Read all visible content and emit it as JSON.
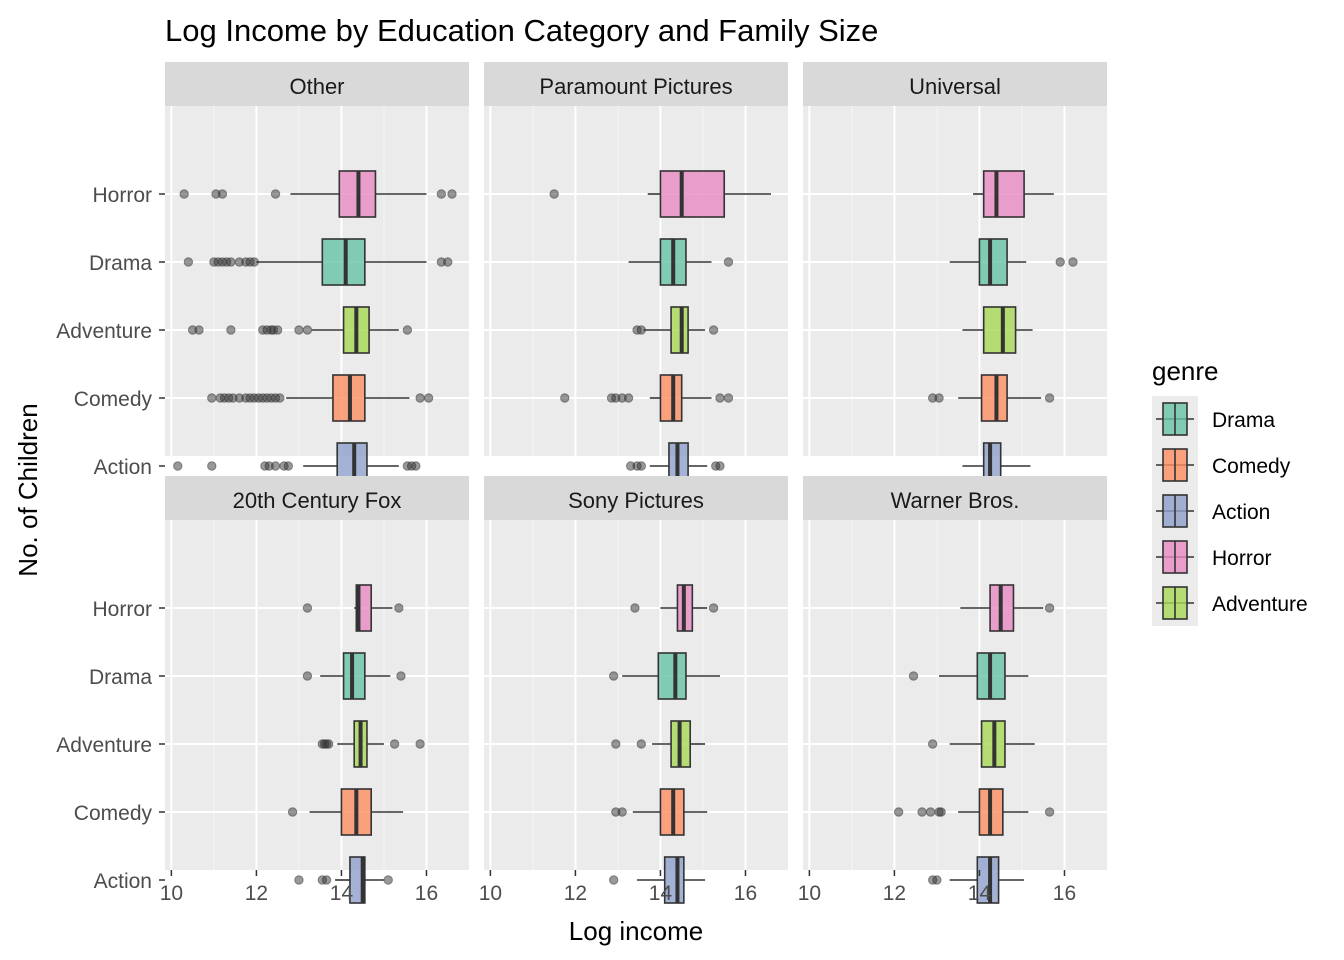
{
  "chart_data": {
    "type": "boxplot",
    "title": "Log Income by Education Category and Family Size",
    "xlabel": "Log income",
    "ylabel": "No. of Children",
    "xlim": [
      9.85,
      17.0
    ],
    "x_ticks": [
      10,
      12,
      14,
      16
    ],
    "categories": [
      "Horror",
      "Drama",
      "Adventure",
      "Comedy",
      "Action"
    ],
    "legend": {
      "title": "genre",
      "position": "right",
      "entries": [
        "Drama",
        "Comedy",
        "Action",
        "Horror",
        "Adventure"
      ]
    },
    "colors": {
      "Drama": "#66c2a5",
      "Comedy": "#fc8d62",
      "Action": "#8da0cb",
      "Horror": "#e78ac3",
      "Adventure": "#a6d854"
    },
    "box_opacity": 0.8,
    "grid": true,
    "facets": [
      {
        "label": "Other",
        "boxes": [
          {
            "genre": "Horror",
            "whisker_low": 12.8,
            "q1": 13.95,
            "median": 14.4,
            "q3": 14.8,
            "whisker_high": 16.0,
            "outliers": [
              10.3,
              11.05,
              11.2,
              12.45,
              16.35,
              16.6
            ]
          },
          {
            "genre": "Drama",
            "whisker_low": 12.0,
            "q1": 13.55,
            "median": 14.1,
            "q3": 14.55,
            "whisker_high": 16.0,
            "outliers": [
              10.4,
              11.0,
              11.1,
              11.2,
              11.3,
              11.4,
              11.6,
              11.75,
              11.85,
              11.95,
              16.35,
              16.5
            ]
          },
          {
            "genre": "Adventure",
            "whisker_low": 13.3,
            "q1": 14.05,
            "median": 14.35,
            "q3": 14.65,
            "whisker_high": 15.35,
            "outliers": [
              10.5,
              10.65,
              11.4,
              12.15,
              12.25,
              12.35,
              12.4,
              12.5,
              13.0,
              13.2,
              15.55
            ]
          },
          {
            "genre": "Comedy",
            "whisker_low": 12.7,
            "q1": 13.8,
            "median": 14.2,
            "q3": 14.55,
            "whisker_high": 15.6,
            "outliers": [
              10.95,
              11.15,
              11.25,
              11.35,
              11.45,
              11.6,
              11.75,
              11.85,
              11.95,
              12.05,
              12.15,
              12.25,
              12.35,
              12.45,
              12.55,
              15.85,
              16.05
            ]
          },
          {
            "genre": "Action",
            "whisker_low": 13.1,
            "q1": 13.9,
            "median": 14.3,
            "q3": 14.6,
            "whisker_high": 15.35,
            "outliers": [
              10.15,
              10.95,
              12.2,
              12.3,
              12.45,
              12.65,
              12.75,
              15.55,
              15.65,
              15.75
            ]
          }
        ]
      },
      {
        "label": "Paramount Pictures",
        "boxes": [
          {
            "genre": "Horror",
            "whisker_low": 13.7,
            "q1": 14.0,
            "median": 14.5,
            "q3": 15.5,
            "whisker_high": 16.6,
            "outliers": [
              11.5
            ]
          },
          {
            "genre": "Drama",
            "whisker_low": 13.25,
            "q1": 14.0,
            "median": 14.3,
            "q3": 14.6,
            "whisker_high": 15.2,
            "outliers": [
              15.6
            ]
          },
          {
            "genre": "Adventure",
            "whisker_low": 13.6,
            "q1": 14.25,
            "median": 14.5,
            "q3": 14.65,
            "whisker_high": 15.05,
            "outliers": [
              13.45,
              13.55,
              15.25
            ]
          },
          {
            "genre": "Comedy",
            "whisker_low": 13.75,
            "q1": 14.0,
            "median": 14.3,
            "q3": 14.5,
            "whisker_high": 15.2,
            "outliers": [
              11.75,
              12.85,
              12.95,
              13.1,
              13.25,
              15.4,
              15.6
            ]
          },
          {
            "genre": "Action",
            "whisker_low": 13.75,
            "q1": 14.2,
            "median": 14.4,
            "q3": 14.65,
            "whisker_high": 15.1,
            "outliers": [
              13.3,
              13.45,
              13.55,
              15.3,
              15.4
            ]
          }
        ]
      },
      {
        "label": "Universal",
        "boxes": [
          {
            "genre": "Horror",
            "whisker_low": 13.85,
            "q1": 14.1,
            "median": 14.4,
            "q3": 15.05,
            "whisker_high": 15.75,
            "outliers": []
          },
          {
            "genre": "Drama",
            "whisker_low": 13.3,
            "q1": 14.0,
            "median": 14.25,
            "q3": 14.65,
            "whisker_high": 15.1,
            "outliers": [
              15.9,
              16.2
            ]
          },
          {
            "genre": "Adventure",
            "whisker_low": 13.6,
            "q1": 14.1,
            "median": 14.55,
            "q3": 14.85,
            "whisker_high": 15.25,
            "outliers": []
          },
          {
            "genre": "Comedy",
            "whisker_low": 13.5,
            "q1": 14.05,
            "median": 14.4,
            "q3": 14.65,
            "whisker_high": 15.45,
            "outliers": [
              12.9,
              13.05,
              15.65
            ]
          },
          {
            "genre": "Action",
            "whisker_low": 13.6,
            "q1": 14.1,
            "median": 14.25,
            "q3": 14.5,
            "whisker_high": 15.2,
            "outliers": []
          }
        ]
      },
      {
        "label": "20th Century Fox",
        "boxes": [
          {
            "genre": "Horror",
            "whisker_low": 14.3,
            "q1": 14.35,
            "median": 14.4,
            "q3": 14.7,
            "whisker_high": 15.2,
            "outliers": [
              13.2,
              15.35
            ]
          },
          {
            "genre": "Drama",
            "whisker_low": 13.5,
            "q1": 14.05,
            "median": 14.25,
            "q3": 14.55,
            "whisker_high": 15.15,
            "outliers": [
              13.2,
              15.4
            ]
          },
          {
            "genre": "Adventure",
            "whisker_low": 13.9,
            "q1": 14.3,
            "median": 14.45,
            "q3": 14.6,
            "whisker_high": 15.0,
            "outliers": [
              13.55,
              13.6,
              13.65,
              13.7,
              15.25,
              15.85
            ]
          },
          {
            "genre": "Comedy",
            "whisker_low": 13.25,
            "q1": 14.0,
            "median": 14.35,
            "q3": 14.7,
            "whisker_high": 15.45,
            "outliers": [
              12.85
            ]
          },
          {
            "genre": "Action",
            "whisker_low": 13.85,
            "q1": 14.2,
            "median": 14.5,
            "q3": 14.55,
            "whisker_high": 15.0,
            "outliers": [
              13.0,
              13.55,
              13.65,
              15.1
            ]
          }
        ]
      },
      {
        "label": "Sony Pictures",
        "boxes": [
          {
            "genre": "Horror",
            "whisker_low": 14.0,
            "q1": 14.4,
            "median": 14.55,
            "q3": 14.75,
            "whisker_high": 15.1,
            "outliers": [
              13.4,
              15.25
            ]
          },
          {
            "genre": "Drama",
            "whisker_low": 13.1,
            "q1": 13.95,
            "median": 14.35,
            "q3": 14.6,
            "whisker_high": 15.4,
            "outliers": [
              12.9
            ]
          },
          {
            "genre": "Adventure",
            "whisker_low": 13.8,
            "q1": 14.25,
            "median": 14.45,
            "q3": 14.7,
            "whisker_high": 15.05,
            "outliers": [
              12.95,
              13.55
            ]
          },
          {
            "genre": "Comedy",
            "whisker_low": 13.35,
            "q1": 14.0,
            "median": 14.3,
            "q3": 14.55,
            "whisker_high": 15.1,
            "outliers": [
              12.95,
              13.1
            ]
          },
          {
            "genre": "Action",
            "whisker_low": 13.45,
            "q1": 14.1,
            "median": 14.4,
            "q3": 14.55,
            "whisker_high": 15.05,
            "outliers": [
              12.9
            ]
          }
        ]
      },
      {
        "label": "Warner Bros.",
        "boxes": [
          {
            "genre": "Horror",
            "whisker_low": 13.55,
            "q1": 14.25,
            "median": 14.5,
            "q3": 14.8,
            "whisker_high": 15.5,
            "outliers": [
              15.65
            ]
          },
          {
            "genre": "Drama",
            "whisker_low": 13.05,
            "q1": 13.95,
            "median": 14.25,
            "q3": 14.6,
            "whisker_high": 15.15,
            "outliers": [
              12.45
            ]
          },
          {
            "genre": "Adventure",
            "whisker_low": 13.3,
            "q1": 14.05,
            "median": 14.35,
            "q3": 14.6,
            "whisker_high": 15.3,
            "outliers": [
              12.9
            ]
          },
          {
            "genre": "Comedy",
            "whisker_low": 13.5,
            "q1": 14.0,
            "median": 14.25,
            "q3": 14.55,
            "whisker_high": 15.15,
            "outliers": [
              12.1,
              12.65,
              12.85,
              13.05,
              13.1,
              15.65
            ]
          },
          {
            "genre": "Action",
            "whisker_low": 13.3,
            "q1": 13.95,
            "median": 14.25,
            "q3": 14.45,
            "whisker_high": 15.05,
            "outliers": [
              12.9,
              13.0
            ]
          }
        ]
      }
    ]
  }
}
